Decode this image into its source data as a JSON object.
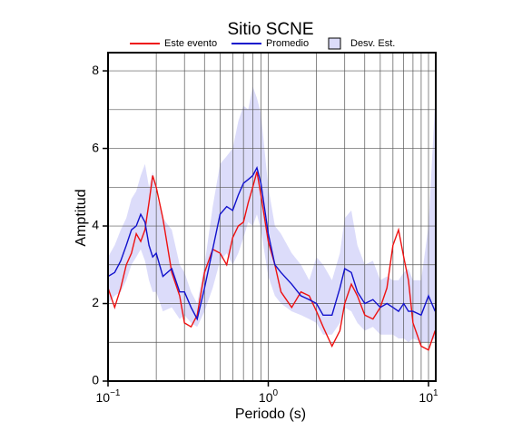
{
  "chart_data": {
    "type": "line",
    "title": "Sitio SCNE",
    "xlabel": "Periodo (s)",
    "ylabel": "Amptitud",
    "xscale": "log",
    "grid": true,
    "legend": "top",
    "xlim": [
      0.1,
      11.1
    ],
    "ylim": [
      0,
      8.47
    ],
    "xticks": [
      {
        "value": 0.1,
        "label": "10",
        "exponent": "−1"
      },
      {
        "value": 1,
        "label": "10",
        "exponent": "0"
      },
      {
        "value": 10,
        "label": "10",
        "exponent": "1"
      }
    ],
    "minor_xticks": [
      0.2,
      0.3,
      0.4,
      0.5,
      0.6,
      0.7,
      0.8,
      0.9,
      2,
      3,
      4,
      5,
      6,
      7,
      8,
      9
    ],
    "yticks": [
      0,
      2,
      4,
      6,
      8
    ],
    "minor_yticks": [
      1,
      3,
      5,
      7
    ],
    "x": [
      0.1,
      0.11,
      0.12,
      0.13,
      0.14,
      0.15,
      0.16,
      0.17,
      0.18,
      0.19,
      0.2,
      0.22,
      0.25,
      0.28,
      0.3,
      0.33,
      0.36,
      0.4,
      0.45,
      0.5,
      0.55,
      0.6,
      0.65,
      0.7,
      0.75,
      0.8,
      0.85,
      0.9,
      1.0,
      1.1,
      1.2,
      1.4,
      1.6,
      1.8,
      2.0,
      2.2,
      2.5,
      2.8,
      3.0,
      3.3,
      3.6,
      4.0,
      4.5,
      5.0,
      5.5,
      6.0,
      6.5,
      7.0,
      7.5,
      8.0,
      9.0,
      10.0,
      11.0
    ],
    "band": {
      "name": "Desv. Est.",
      "color": "#dcdcfa",
      "upper": [
        3.2,
        3.5,
        3.9,
        4.2,
        4.7,
        4.9,
        5.3,
        5.6,
        5.0,
        5.4,
        4.8,
        4.2,
        3.9,
        3.0,
        2.8,
        2.3,
        2.0,
        3.0,
        4.5,
        5.6,
        5.8,
        6.0,
        6.7,
        7.1,
        7.0,
        7.6,
        7.3,
        6.9,
        5.0,
        4.0,
        3.8,
        3.3,
        3.0,
        2.6,
        3.2,
        3.0,
        2.6,
        3.3,
        4.2,
        4.4,
        3.5,
        3.0,
        3.1,
        2.6,
        2.7,
        2.6,
        2.6,
        2.8,
        2.9,
        2.6,
        2.6,
        4.0,
        7.2
      ],
      "lower": [
        2.0,
        2.2,
        2.3,
        2.6,
        3.0,
        3.2,
        3.4,
        3.1,
        2.6,
        2.3,
        2.3,
        1.8,
        1.9,
        1.6,
        1.7,
        1.5,
        1.4,
        1.8,
        2.4,
        3.1,
        3.3,
        3.0,
        3.3,
        3.7,
        4.1,
        4.0,
        4.3,
        3.9,
        2.7,
        2.2,
        2.0,
        1.8,
        1.7,
        1.6,
        1.5,
        1.2,
        1.2,
        1.5,
        1.9,
        1.8,
        1.5,
        1.3,
        1.4,
        1.2,
        1.2,
        1.2,
        1.1,
        1.1,
        1.0,
        1.1,
        1.0,
        1.0,
        1.1
      ]
    },
    "series": [
      {
        "name": "Este evento",
        "color": "#ee1111",
        "values": [
          2.4,
          1.9,
          2.4,
          3.0,
          3.3,
          3.8,
          3.6,
          3.9,
          4.6,
          5.3,
          5.0,
          4.2,
          2.8,
          2.2,
          1.5,
          1.4,
          1.7,
          2.8,
          3.4,
          3.3,
          3.0,
          3.7,
          4.0,
          4.1,
          4.6,
          5.0,
          5.4,
          4.8,
          3.6,
          3.0,
          2.3,
          1.9,
          2.3,
          2.2,
          1.8,
          1.4,
          0.9,
          1.3,
          2.0,
          2.5,
          2.2,
          1.7,
          1.6,
          1.9,
          2.4,
          3.5,
          3.9,
          3.2,
          2.6,
          1.5,
          0.9,
          0.8,
          1.3
        ]
      },
      {
        "name": "Promedio",
        "color": "#1111cc",
        "values": [
          2.7,
          2.8,
          3.1,
          3.5,
          3.9,
          4.0,
          4.3,
          4.1,
          3.5,
          3.2,
          3.3,
          2.7,
          2.9,
          2.3,
          2.3,
          1.9,
          1.6,
          2.4,
          3.4,
          4.3,
          4.5,
          4.4,
          4.8,
          5.1,
          5.2,
          5.3,
          5.5,
          5.1,
          3.8,
          3.0,
          2.8,
          2.5,
          2.2,
          2.1,
          2.0,
          1.7,
          1.7,
          2.4,
          2.9,
          2.8,
          2.3,
          2.0,
          2.1,
          1.9,
          2.0,
          1.9,
          1.8,
          2.0,
          1.8,
          1.8,
          1.7,
          2.2,
          1.8
        ]
      }
    ]
  }
}
